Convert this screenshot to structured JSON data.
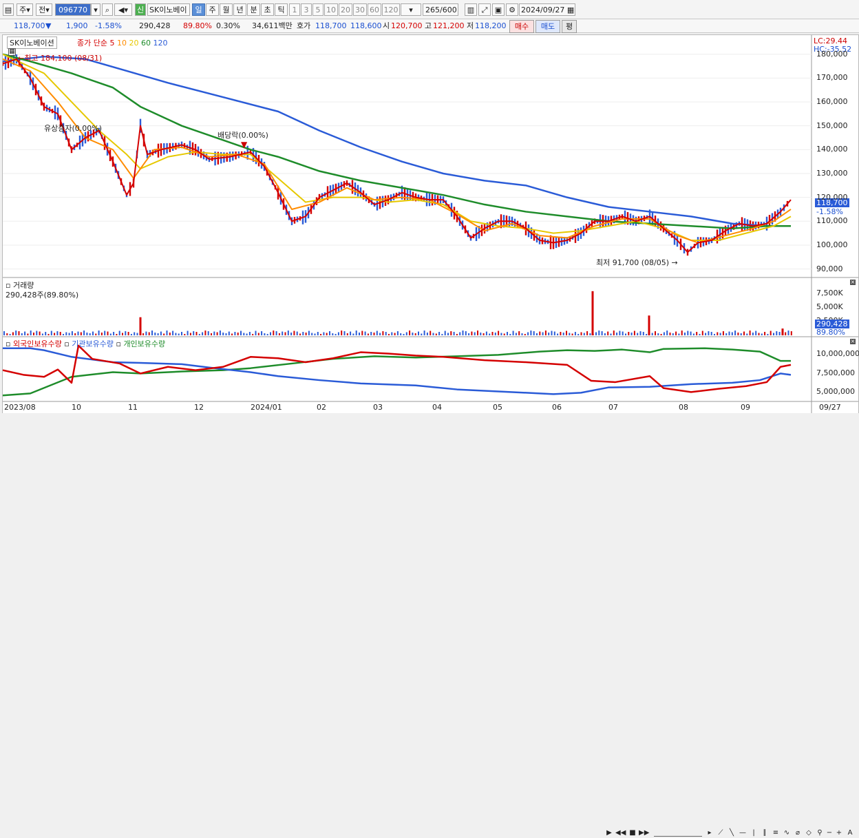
{
  "toolbar": {
    "market_tab_a": "주",
    "market_tab_b": "전",
    "stock_code": "096770",
    "badge": "신",
    "stock_name": "SK이노베이",
    "periods": [
      "일",
      "주",
      "월",
      "년",
      "분",
      "초",
      "틱"
    ],
    "active_period": "일",
    "intervals": [
      "1",
      "3",
      "5",
      "10",
      "20",
      "30",
      "60",
      "120"
    ],
    "count": "265",
    "count_total": "/600",
    "date": "2024/09/27"
  },
  "quote": {
    "price": "118,700",
    "change_arrow": "▼",
    "change": "1,900",
    "change_pct": "-1.58%",
    "volume": "290,428",
    "vol_ratio": "89.80%",
    "turnover": "0.30%",
    "amount": "34,611백만",
    "bid_label": "호가",
    "bid": "118,700",
    "ask": "118,600",
    "open_label": "시",
    "open": "120,700",
    "high_label": "고",
    "high": "121,200",
    "low_label": "저",
    "low": "118,200",
    "buy_label": "매수",
    "sell_label": "매도",
    "eval_label": "평"
  },
  "price_pane": {
    "legend_name": "SK이노베이션",
    "legend_ma": "종가 단순",
    "ma_periods": [
      "5",
      "10",
      "20",
      "60",
      "120"
    ],
    "ma_colors": [
      "#d40000",
      "#ff8c00",
      "#e6c800",
      "#1e8c2a",
      "#2a5bd7"
    ],
    "lc": "LC:29.44",
    "hc": "HC:-35.52",
    "high_note": "최고 184,100 (08/31)",
    "low_note": "최저 91,700 (08/05)",
    "event_1": "유상증자(0.00%)",
    "event_2": "배당락(0.00%)",
    "axis_ticks": [
      "180,000",
      "170,000",
      "160,000",
      "150,000",
      "140,000",
      "130,000",
      "120,000",
      "110,000",
      "100,000",
      "90,000"
    ],
    "axis_values": [
      180000,
      170000,
      160000,
      150000,
      140000,
      130000,
      120000,
      110000,
      100000,
      90000
    ],
    "current_price": "118,700",
    "current_pct": "-1.58%"
  },
  "volume_pane": {
    "title": "거래량",
    "value": "290,428주(89.80%)",
    "axis_ticks": [
      "7,500K",
      "5,000K",
      "2,500K"
    ],
    "current": "290,428",
    "current_pct": "89.80%"
  },
  "holding_pane": {
    "legend_foreign": "외국인보유수량",
    "legend_inst": "기관보유수량",
    "legend_indiv": "개인보유수량",
    "axis_ticks": [
      "10,000,000",
      "7,500,000",
      "5,000,000"
    ]
  },
  "x_axis": {
    "labels": [
      "2023/08",
      "10",
      "11",
      "12",
      "2024/01",
      "02",
      "03",
      "04",
      "05",
      "06",
      "07",
      "08",
      "09"
    ],
    "end_label": "09/27"
  },
  "chart_data": {
    "type": "line",
    "title": "SK이노베이션",
    "ylim": [
      87000,
      188000
    ],
    "ma5_points": [
      [
        0,
        176000
      ],
      [
        20,
        178000
      ],
      [
        40,
        170000
      ],
      [
        60,
        158000
      ],
      [
        80,
        155000
      ],
      [
        100,
        140000
      ],
      [
        120,
        145000
      ],
      [
        140,
        148000
      ],
      [
        160,
        135000
      ],
      [
        180,
        121000
      ],
      [
        190,
        126000
      ],
      [
        200,
        150000
      ],
      [
        210,
        138000
      ],
      [
        230,
        140000
      ],
      [
        260,
        142000
      ],
      [
        280,
        140000
      ],
      [
        300,
        136000
      ],
      [
        330,
        137000
      ],
      [
        360,
        139000
      ],
      [
        380,
        133000
      ],
      [
        400,
        122000
      ],
      [
        420,
        110000
      ],
      [
        440,
        112000
      ],
      [
        460,
        120000
      ],
      [
        480,
        123000
      ],
      [
        500,
        126000
      ],
      [
        520,
        122000
      ],
      [
        540,
        117000
      ],
      [
        560,
        119000
      ],
      [
        580,
        122000
      ],
      [
        600,
        120000
      ],
      [
        620,
        119000
      ],
      [
        640,
        119000
      ],
      [
        660,
        112000
      ],
      [
        680,
        103000
      ],
      [
        700,
        107000
      ],
      [
        720,
        110000
      ],
      [
        740,
        110000
      ],
      [
        760,
        107000
      ],
      [
        780,
        102000
      ],
      [
        800,
        101000
      ],
      [
        820,
        102000
      ],
      [
        840,
        105000
      ],
      [
        860,
        110000
      ],
      [
        880,
        110000
      ],
      [
        900,
        112000
      ],
      [
        920,
        110000
      ],
      [
        940,
        112000
      ],
      [
        960,
        107000
      ],
      [
        980,
        102000
      ],
      [
        995,
        97000
      ],
      [
        1010,
        101000
      ],
      [
        1030,
        102000
      ],
      [
        1050,
        106000
      ],
      [
        1070,
        109000
      ],
      [
        1090,
        108000
      ],
      [
        1110,
        109000
      ],
      [
        1130,
        114000
      ],
      [
        1145,
        119000
      ]
    ],
    "ma10_points": [
      [
        0,
        178000
      ],
      [
        40,
        173000
      ],
      [
        80,
        160000
      ],
      [
        120,
        145000
      ],
      [
        160,
        140000
      ],
      [
        190,
        128000
      ],
      [
        220,
        140000
      ],
      [
        260,
        141000
      ],
      [
        300,
        137000
      ],
      [
        340,
        138000
      ],
      [
        380,
        134000
      ],
      [
        420,
        115000
      ],
      [
        460,
        118000
      ],
      [
        500,
        124000
      ],
      [
        540,
        119000
      ],
      [
        580,
        120000
      ],
      [
        620,
        119000
      ],
      [
        660,
        113000
      ],
      [
        700,
        106000
      ],
      [
        740,
        109000
      ],
      [
        780,
        104000
      ],
      [
        820,
        103000
      ],
      [
        860,
        108000
      ],
      [
        900,
        111000
      ],
      [
        940,
        111000
      ],
      [
        980,
        104000
      ],
      [
        1010,
        101000
      ],
      [
        1050,
        104000
      ],
      [
        1090,
        107000
      ],
      [
        1120,
        110000
      ],
      [
        1145,
        115000
      ]
    ],
    "ma20_points": [
      [
        0,
        180000
      ],
      [
        60,
        172000
      ],
      [
        100,
        160000
      ],
      [
        140,
        148000
      ],
      [
        180,
        138000
      ],
      [
        200,
        132000
      ],
      [
        240,
        137000
      ],
      [
        280,
        139000
      ],
      [
        320,
        138000
      ],
      [
        360,
        138000
      ],
      [
        400,
        128000
      ],
      [
        440,
        118000
      ],
      [
        480,
        120000
      ],
      [
        520,
        120000
      ],
      [
        560,
        118000
      ],
      [
        600,
        119000
      ],
      [
        640,
        117000
      ],
      [
        680,
        110000
      ],
      [
        720,
        108000
      ],
      [
        760,
        107000
      ],
      [
        800,
        105000
      ],
      [
        840,
        106000
      ],
      [
        880,
        108000
      ],
      [
        920,
        110000
      ],
      [
        960,
        107000
      ],
      [
        1000,
        102000
      ],
      [
        1040,
        102000
      ],
      [
        1080,
        105000
      ],
      [
        1120,
        108000
      ],
      [
        1145,
        112000
      ]
    ],
    "ma60_points": [
      [
        0,
        180000
      ],
      [
        40,
        177000
      ],
      [
        100,
        172000
      ],
      [
        160,
        166000
      ],
      [
        200,
        158000
      ],
      [
        260,
        150000
      ],
      [
        320,
        144000
      ],
      [
        360,
        140000
      ],
      [
        400,
        137000
      ],
      [
        460,
        131000
      ],
      [
        520,
        127000
      ],
      [
        580,
        124000
      ],
      [
        640,
        121000
      ],
      [
        700,
        117000
      ],
      [
        760,
        114000
      ],
      [
        820,
        112000
      ],
      [
        880,
        110000
      ],
      [
        940,
        109000
      ],
      [
        1000,
        108000
      ],
      [
        1060,
        107000
      ],
      [
        1110,
        108000
      ],
      [
        1145,
        108000
      ]
    ],
    "ma120_points": [
      [
        0,
        177000
      ],
      [
        60,
        179000
      ],
      [
        120,
        178000
      ],
      [
        180,
        173000
      ],
      [
        240,
        168000
      ],
      [
        320,
        162000
      ],
      [
        400,
        156000
      ],
      [
        460,
        148000
      ],
      [
        520,
        141000
      ],
      [
        580,
        135000
      ],
      [
        640,
        130000
      ],
      [
        700,
        127000
      ],
      [
        760,
        125000
      ],
      [
        820,
        120000
      ],
      [
        880,
        116000
      ],
      [
        940,
        114000
      ],
      [
        1000,
        112000
      ],
      [
        1060,
        109000
      ],
      [
        1110,
        108000
      ],
      [
        1145,
        108000
      ]
    ],
    "volume_spikes": [
      [
        200,
        3.2
      ],
      [
        857,
        7.8
      ],
      [
        939,
        3.5
      ],
      [
        1133,
        1.2
      ]
    ],
    "foreign_points": [
      [
        0,
        7500000
      ],
      [
        30,
        6800000
      ],
      [
        60,
        6500000
      ],
      [
        80,
        7600000
      ],
      [
        100,
        5600000
      ],
      [
        110,
        11200000
      ],
      [
        130,
        9200000
      ],
      [
        170,
        8500000
      ],
      [
        200,
        7000000
      ],
      [
        240,
        8000000
      ],
      [
        280,
        7500000
      ],
      [
        320,
        8000000
      ],
      [
        360,
        9500000
      ],
      [
        400,
        9300000
      ],
      [
        440,
        8700000
      ],
      [
        480,
        9300000
      ],
      [
        520,
        10200000
      ],
      [
        560,
        10000000
      ],
      [
        600,
        9700000
      ],
      [
        640,
        9500000
      ],
      [
        700,
        9000000
      ],
      [
        760,
        8700000
      ],
      [
        820,
        8300000
      ],
      [
        855,
        5900000
      ],
      [
        890,
        5700000
      ],
      [
        940,
        6600000
      ],
      [
        960,
        4800000
      ],
      [
        1000,
        4200000
      ],
      [
        1040,
        4700000
      ],
      [
        1080,
        5100000
      ],
      [
        1110,
        5700000
      ],
      [
        1130,
        8000000
      ],
      [
        1145,
        8300000
      ]
    ],
    "inst_points": [
      [
        0,
        10800000
      ],
      [
        40,
        10800000
      ],
      [
        60,
        10500000
      ],
      [
        100,
        9500000
      ],
      [
        160,
        8700000
      ],
      [
        200,
        8600000
      ],
      [
        260,
        8400000
      ],
      [
        300,
        7900000
      ],
      [
        360,
        7200000
      ],
      [
        400,
        6600000
      ],
      [
        460,
        6000000
      ],
      [
        520,
        5500000
      ],
      [
        600,
        5200000
      ],
      [
        660,
        4600000
      ],
      [
        720,
        4300000
      ],
      [
        800,
        3900000
      ],
      [
        840,
        4100000
      ],
      [
        880,
        4900000
      ],
      [
        940,
        5000000
      ],
      [
        1000,
        5400000
      ],
      [
        1060,
        5600000
      ],
      [
        1100,
        6000000
      ],
      [
        1130,
        7000000
      ],
      [
        1145,
        6800000
      ]
    ],
    "indiv_points": [
      [
        0,
        3700000
      ],
      [
        40,
        4000000
      ],
      [
        100,
        6500000
      ],
      [
        160,
        7200000
      ],
      [
        200,
        7000000
      ],
      [
        260,
        7300000
      ],
      [
        320,
        7500000
      ],
      [
        360,
        7800000
      ],
      [
        420,
        8500000
      ],
      [
        480,
        9200000
      ],
      [
        540,
        9600000
      ],
      [
        600,
        9400000
      ],
      [
        660,
        9600000
      ],
      [
        720,
        9800000
      ],
      [
        780,
        10300000
      ],
      [
        820,
        10500000
      ],
      [
        860,
        10400000
      ],
      [
        900,
        10600000
      ],
      [
        940,
        10200000
      ],
      [
        960,
        10700000
      ],
      [
        1020,
        10800000
      ],
      [
        1060,
        10600000
      ],
      [
        1100,
        10300000
      ],
      [
        1130,
        8900000
      ],
      [
        1145,
        8900000
      ]
    ]
  }
}
